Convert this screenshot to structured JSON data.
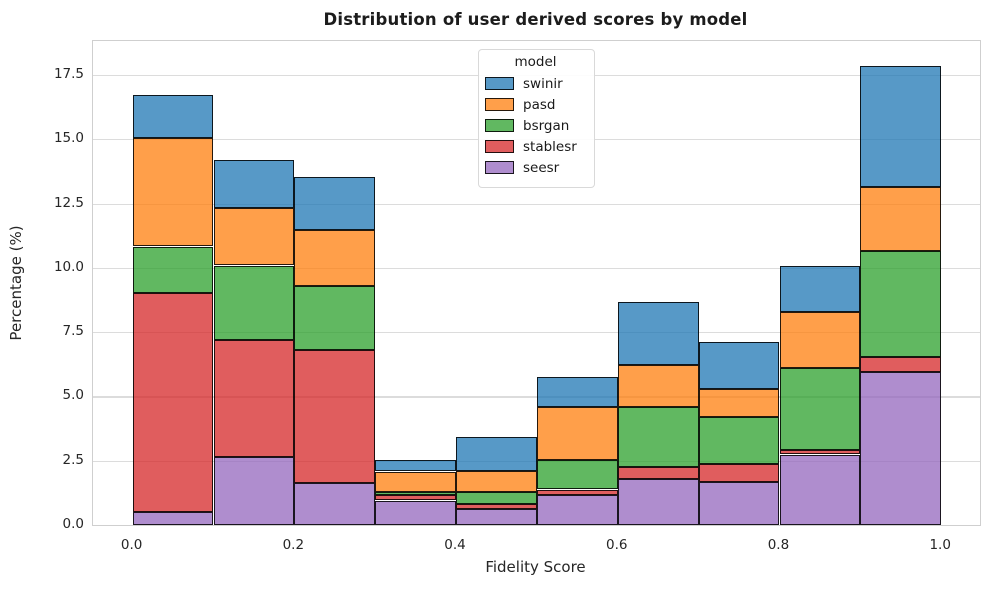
{
  "chart_data": {
    "type": "bar",
    "subtype": "stacked-histogram",
    "title": "Distribution of user derived scores by model",
    "xlabel": "Fidelity Score",
    "ylabel": "Percentage (%)",
    "legend_title": "model",
    "legend_position": "upper center",
    "legend_order_top_to_bottom": [
      "swinir",
      "pasd",
      "bsrgan",
      "stablesr",
      "seesr"
    ],
    "grid": "horizontal",
    "bin_edges": [
      0.0,
      0.1,
      0.2,
      0.3,
      0.4,
      0.5,
      0.6,
      0.7,
      0.8,
      0.9,
      1.0
    ],
    "series": [
      {
        "name": "seesr",
        "color": "#9467bd",
        "values": [
          0.52,
          2.63,
          1.62,
          0.95,
          0.63,
          1.15,
          1.79,
          1.66,
          2.74,
          5.96
        ]
      },
      {
        "name": "stablesr",
        "color": "#d62728",
        "values": [
          8.52,
          4.55,
          5.18,
          0.2,
          0.17,
          0.23,
          0.48,
          0.72,
          0.18,
          0.56
        ]
      },
      {
        "name": "bsrgan",
        "color": "#2ca02c",
        "values": [
          1.79,
          2.91,
          2.5,
          0.15,
          0.47,
          1.14,
          2.31,
          1.81,
          3.2,
          4.14
        ]
      },
      {
        "name": "pasd",
        "color": "#ff7f0e",
        "values": [
          4.23,
          2.24,
          2.16,
          0.78,
          0.82,
          2.08,
          1.64,
          1.1,
          2.18,
          2.49
        ]
      },
      {
        "name": "swinir",
        "color": "#1f77b4",
        "values": [
          1.66,
          1.87,
          2.09,
          0.46,
          1.35,
          1.17,
          2.47,
          1.81,
          1.78,
          4.69
        ]
      }
    ],
    "stack_order": "bottom-to-top",
    "fill_alpha": 0.75,
    "bin_totals": [
      16.72,
      14.2,
      13.55,
      2.54,
      3.44,
      5.77,
      8.69,
      7.1,
      10.08,
      17.84
    ],
    "xticks": [
      {
        "label": "0.0",
        "value": 0.0
      },
      {
        "label": "0.2",
        "value": 0.2
      },
      {
        "label": "0.4",
        "value": 0.4
      },
      {
        "label": "0.6",
        "value": 0.6
      },
      {
        "label": "0.8",
        "value": 0.8
      },
      {
        "label": "1.0",
        "value": 1.0
      }
    ],
    "yticks": [
      {
        "label": "0.0",
        "value": 0.0
      },
      {
        "label": "2.5",
        "value": 2.5
      },
      {
        "label": "5.0",
        "value": 5.0
      },
      {
        "label": "7.5",
        "value": 7.5
      },
      {
        "label": "10.0",
        "value": 10.0
      },
      {
        "label": "12.5",
        "value": 12.5
      },
      {
        "label": "15.0",
        "value": 15.0
      },
      {
        "label": "17.5",
        "value": 17.5
      }
    ],
    "xlim": [
      -0.049,
      1.048
    ],
    "ylim": [
      0,
      18.82
    ],
    "colors": {
      "grid": "#dcdcdc",
      "spine": "#cfcfcf",
      "bar_edge": "#000000",
      "text": "#262626",
      "title_text": "#1c1c1c"
    }
  }
}
